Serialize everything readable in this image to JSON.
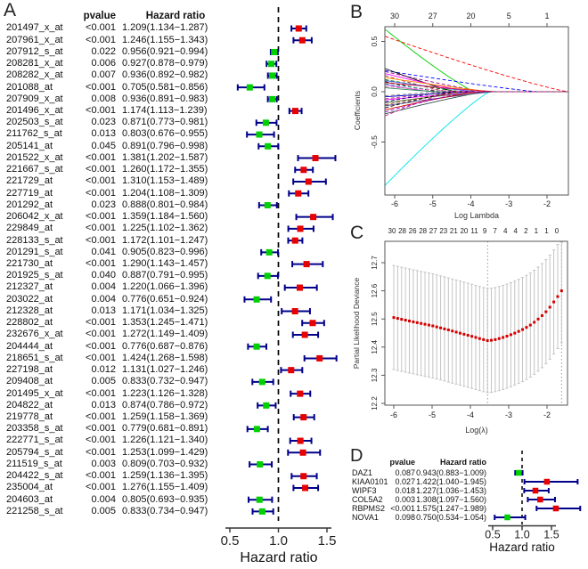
{
  "colors": {
    "risk_high": "#e60000",
    "risk_low": "#00d000",
    "ci_bar": "#00008b",
    "ref_dash": "#000000",
    "cv_dot": "#d40000",
    "cv_bar": "#c4c4c4",
    "cv_vline": "#9a9a9a",
    "axis": "#333333"
  },
  "chart_data": [
    {
      "panel": "A",
      "type": "forest",
      "label": "A",
      "col_pvalue": "pvalue",
      "col_hr": "Hazard ratio",
      "xlabel": "Hazard ratio",
      "axis_ticks": [
        0.5,
        1.0,
        1.5
      ],
      "ref_line": 1.0,
      "rows": [
        {
          "id": "201497_x_at",
          "p": "<0.001",
          "hr": 1.209,
          "lo": 1.134,
          "hi": 1.287
        },
        {
          "id": "207961_x_at",
          "p": "<0.001",
          "hr": 1.246,
          "lo": 1.155,
          "hi": 1.343
        },
        {
          "id": "207912_s_at",
          "p": "0.022",
          "hr": 0.956,
          "lo": 0.921,
          "hi": 0.994
        },
        {
          "id": "208281_x_at",
          "p": "0.006",
          "hr": 0.927,
          "lo": 0.878,
          "hi": 0.979
        },
        {
          "id": "208282_x_at",
          "p": "0.007",
          "hr": 0.936,
          "lo": 0.892,
          "hi": 0.982
        },
        {
          "id": "201088_at",
          "p": "<0.001",
          "hr": 0.705,
          "lo": 0.581,
          "hi": 0.856
        },
        {
          "id": "207909_x_at",
          "p": "0.008",
          "hr": 0.936,
          "lo": 0.891,
          "hi": 0.983
        },
        {
          "id": "201496_x_at",
          "p": "<0.001",
          "hr": 1.174,
          "lo": 1.113,
          "hi": 1.239
        },
        {
          "id": "202503_s_at",
          "p": "0.023",
          "hr": 0.871,
          "lo": 0.773,
          "hi": 0.981
        },
        {
          "id": "211762_s_at",
          "p": "0.013",
          "hr": 0.803,
          "lo": 0.676,
          "hi": 0.955
        },
        {
          "id": "205141_at",
          "p": "0.045",
          "hr": 0.891,
          "lo": 0.796,
          "hi": 0.998
        },
        {
          "id": "201522_x_at",
          "p": "<0.001",
          "hr": 1.381,
          "lo": 1.202,
          "hi": 1.587
        },
        {
          "id": "221667_s_at",
          "p": "<0.001",
          "hr": 1.26,
          "lo": 1.172,
          "hi": 1.355
        },
        {
          "id": "221729_at",
          "p": "<0.001",
          "hr": 1.31,
          "lo": 1.153,
          "hi": 1.489
        },
        {
          "id": "227719_at",
          "p": "<0.001",
          "hr": 1.204,
          "lo": 1.108,
          "hi": 1.309
        },
        {
          "id": "201292_at",
          "p": "0.023",
          "hr": 0.888,
          "lo": 0.801,
          "hi": 0.984
        },
        {
          "id": "206042_x_at",
          "p": "<0.001",
          "hr": 1.359,
          "lo": 1.184,
          "hi": 1.56
        },
        {
          "id": "229849_at",
          "p": "<0.001",
          "hr": 1.225,
          "lo": 1.102,
          "hi": 1.362
        },
        {
          "id": "228133_s_at",
          "p": "<0.001",
          "hr": 1.172,
          "lo": 1.101,
          "hi": 1.247
        },
        {
          "id": "201291_s_at",
          "p": "0.041",
          "hr": 0.905,
          "lo": 0.823,
          "hi": 0.996
        },
        {
          "id": "221730_at",
          "p": "<0.001",
          "hr": 1.29,
          "lo": 1.143,
          "hi": 1.457
        },
        {
          "id": "201925_s_at",
          "p": "0.040",
          "hr": 0.887,
          "lo": 0.791,
          "hi": 0.995
        },
        {
          "id": "212327_at",
          "p": "0.004",
          "hr": 1.22,
          "lo": 1.066,
          "hi": 1.396
        },
        {
          "id": "203022_at",
          "p": "0.004",
          "hr": 0.776,
          "lo": 0.651,
          "hi": 0.924
        },
        {
          "id": "212328_at",
          "p": "0.013",
          "hr": 1.171,
          "lo": 1.034,
          "hi": 1.325
        },
        {
          "id": "228802_at",
          "p": "<0.001",
          "hr": 1.353,
          "lo": 1.245,
          "hi": 1.471
        },
        {
          "id": "232676_x_at",
          "p": "<0.001",
          "hr": 1.272,
          "lo": 1.149,
          "hi": 1.409
        },
        {
          "id": "204444_at",
          "p": "<0.001",
          "hr": 0.776,
          "lo": 0.687,
          "hi": 0.876
        },
        {
          "id": "218651_s_at",
          "p": "<0.001",
          "hr": 1.424,
          "lo": 1.268,
          "hi": 1.598
        },
        {
          "id": "227198_at",
          "p": "0.012",
          "hr": 1.131,
          "lo": 1.027,
          "hi": 1.246
        },
        {
          "id": "209408_at",
          "p": "0.005",
          "hr": 0.833,
          "lo": 0.732,
          "hi": 0.947
        },
        {
          "id": "201495_x_at",
          "p": "<0.001",
          "hr": 1.223,
          "lo": 1.126,
          "hi": 1.328
        },
        {
          "id": "204822_at",
          "p": "0.013",
          "hr": 0.874,
          "lo": 0.786,
          "hi": 0.972
        },
        {
          "id": "219778_at",
          "p": "<0.001",
          "hr": 1.259,
          "lo": 1.158,
          "hi": 1.369
        },
        {
          "id": "203358_s_at",
          "p": "<0.001",
          "hr": 0.779,
          "lo": 0.681,
          "hi": 0.891
        },
        {
          "id": "222771_s_at",
          "p": "<0.001",
          "hr": 1.226,
          "lo": 1.121,
          "hi": 1.34
        },
        {
          "id": "205794_s_at",
          "p": "<0.001",
          "hr": 1.253,
          "lo": 1.099,
          "hi": 1.429
        },
        {
          "id": "211519_s_at",
          "p": "0.003",
          "hr": 0.809,
          "lo": 0.703,
          "hi": 0.932
        },
        {
          "id": "204422_s_at",
          "p": "<0.001",
          "hr": 1.259,
          "lo": 1.136,
          "hi": 1.395
        },
        {
          "id": "235004_at",
          "p": "<0.001",
          "hr": 1.276,
          "lo": 1.155,
          "hi": 1.409
        },
        {
          "id": "204603_at",
          "p": "0.004",
          "hr": 0.805,
          "lo": 0.693,
          "hi": 0.935
        },
        {
          "id": "221258_s_at",
          "p": "0.005",
          "hr": 0.833,
          "lo": 0.734,
          "hi": 0.947
        }
      ]
    },
    {
      "panel": "B",
      "type": "line",
      "label": "B",
      "ylabel": "Coefficients",
      "xlabel": "Log Lambda",
      "top_axis": [
        "30",
        "27",
        "20",
        "5",
        "1"
      ],
      "x_ticks": [
        -6,
        -5,
        -4,
        -3,
        -2
      ],
      "y_ticks": [
        0.5,
        0.0,
        -0.5
      ],
      "xlim": [
        -6.25,
        -1.44
      ],
      "ylim": [
        -1.03,
        0.67
      ],
      "lines": [
        {
          "c0": 0.62,
          "end": -3.9,
          "color": "#00cd00"
        },
        {
          "c0": 0.55,
          "end": -1.45,
          "color": "#ff0000"
        },
        {
          "c0": -0.93,
          "end": -3.5,
          "color": "#00e5ee"
        },
        {
          "c0": 0.21,
          "end": -2.25,
          "color": "#0000ff"
        },
        {
          "c0": 0.23,
          "end": -4.4,
          "color": "#000000"
        },
        {
          "c0": 0.2,
          "end": -3.6,
          "color": "#8b008b"
        },
        {
          "c0": 0.18,
          "end": -4.0,
          "color": "#ff00ff"
        },
        {
          "c0": 0.16,
          "end": -4.6,
          "color": "#a52a2a"
        },
        {
          "c0": 0.14,
          "end": -3.4,
          "color": "#ff8c00"
        },
        {
          "c0": 0.12,
          "end": -4.2,
          "color": "#006400"
        },
        {
          "c0": 0.11,
          "end": -3.8,
          "color": "#4169e1"
        },
        {
          "c0": 0.1,
          "end": -4.8,
          "color": "#000000"
        },
        {
          "c0": 0.09,
          "end": -3.3,
          "color": "#dc143c"
        },
        {
          "c0": 0.08,
          "end": -4.5,
          "color": "#20b2aa"
        },
        {
          "c0": 0.07,
          "end": -5.0,
          "color": "#9932cc"
        },
        {
          "c0": 0.05,
          "end": -4.1,
          "color": "#ff69b4"
        },
        {
          "c0": 0.04,
          "end": -4.9,
          "color": "#2e8b57"
        },
        {
          "c0": -0.04,
          "end": -4.7,
          "color": "#808080"
        },
        {
          "c0": -0.05,
          "end": -3.9,
          "color": "#0000cd"
        },
        {
          "c0": -0.07,
          "end": -4.3,
          "color": "#b03060"
        },
        {
          "c0": -0.08,
          "end": -3.5,
          "color": "#ff00ff"
        },
        {
          "c0": -0.1,
          "end": -4.6,
          "color": "#00008b"
        },
        {
          "c0": -0.11,
          "end": -3.7,
          "color": "#556b2f"
        },
        {
          "c0": -0.13,
          "end": -4.2,
          "color": "#8b4513"
        },
        {
          "c0": -0.14,
          "end": -3.4,
          "color": "#483d8b"
        },
        {
          "c0": -0.16,
          "end": -4.4,
          "color": "#000000"
        },
        {
          "c0": -0.18,
          "end": -3.8,
          "color": "#cc0000"
        },
        {
          "c0": -0.2,
          "end": -4.0,
          "color": "#9400d3"
        },
        {
          "c0": -0.22,
          "end": -3.6,
          "color": "#2f4f4f"
        },
        {
          "c0": -0.24,
          "end": -4.5,
          "color": "#c71585"
        }
      ]
    },
    {
      "panel": "C",
      "type": "scatter",
      "label": "C",
      "ylabel": "Partial Likelihood Deviance",
      "xlabel": "Log(λ)",
      "top_axis": [
        "30",
        "28",
        "26",
        "28",
        "27",
        "23",
        "21",
        "20",
        "11",
        "9",
        "7",
        "4",
        "4",
        "2",
        "1",
        "1",
        "0"
      ],
      "x_ticks": [
        -6,
        -5,
        -4,
        -3,
        -2
      ],
      "y_ticks": [
        12.2,
        12.3,
        12.4,
        12.5,
        12.6,
        12.7
      ],
      "xlim": [
        -6.25,
        -1.45
      ],
      "ylim": [
        12.2,
        12.75
      ],
      "vlines": [
        -3.55,
        -1.62
      ],
      "band": 0.185,
      "n_points": 44,
      "x_range": [
        -6,
        -1.62
      ],
      "curve": [
        [
          -6,
          12.505
        ],
        [
          -5.5,
          12.49
        ],
        [
          -5,
          12.476
        ],
        [
          -4.6,
          12.462
        ],
        [
          -4.2,
          12.447
        ],
        [
          -3.9,
          12.436
        ],
        [
          -3.7,
          12.428
        ],
        [
          -3.55,
          12.423
        ],
        [
          -3.4,
          12.425
        ],
        [
          -3.2,
          12.432
        ],
        [
          -3.0,
          12.441
        ],
        [
          -2.8,
          12.452
        ],
        [
          -2.6,
          12.465
        ],
        [
          -2.4,
          12.481
        ],
        [
          -2.2,
          12.503
        ],
        [
          -2.05,
          12.522
        ],
        [
          -1.9,
          12.546
        ],
        [
          -1.8,
          12.565
        ],
        [
          -1.72,
          12.58
        ],
        [
          -1.65,
          12.592
        ],
        [
          -1.62,
          12.6
        ]
      ]
    },
    {
      "panel": "D",
      "type": "forest",
      "label": "D",
      "col_pvalue": "pvalue",
      "col_hr": "Hazard ratio",
      "xlabel": "Hazard ratio",
      "axis_ticks": [
        0.5,
        1.0,
        1.5
      ],
      "ref_line": 1.0,
      "rows": [
        {
          "id": "DAZ1",
          "p": "0.087",
          "hr": 0.943,
          "lo": 0.883,
          "hi": 1.009
        },
        {
          "id": "KIAA0101",
          "p": "0.027",
          "hr": 1.422,
          "lo": 1.04,
          "hi": 1.945
        },
        {
          "id": "WIPF3",
          "p": "0.018",
          "hr": 1.227,
          "lo": 1.036,
          "hi": 1.453
        },
        {
          "id": "COL5A2",
          "p": "0.003",
          "hr": 1.308,
          "lo": 1.097,
          "hi": 1.56
        },
        {
          "id": "RBPMS2",
          "p": "<0.001",
          "hr": 1.575,
          "lo": 1.247,
          "hi": 1.989
        },
        {
          "id": "NOVA1",
          "p": "0.098",
          "hr": 0.75,
          "lo": 0.534,
          "hi": 1.054
        }
      ]
    }
  ]
}
